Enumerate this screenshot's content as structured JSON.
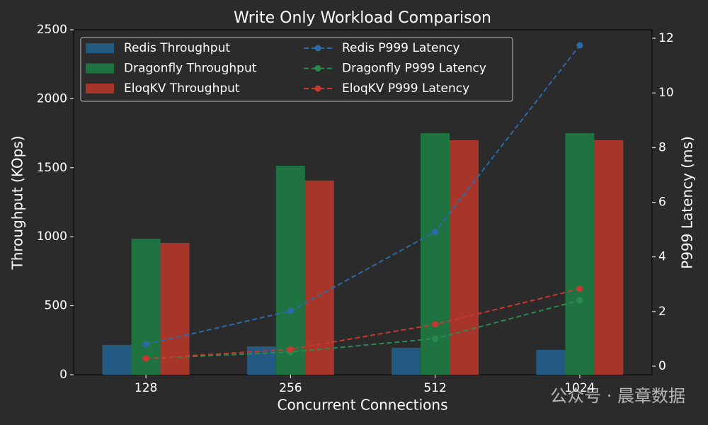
{
  "chart_data": {
    "type": "bar",
    "title": "Write Only Workload Comparison",
    "x_label": "Concurrent Connections",
    "y_label": "Throughput (KOps)",
    "y2_label": "P999 Latency (ms)",
    "categories": [
      "128",
      "256",
      "512",
      "1024"
    ],
    "ylim": [
      0,
      2500
    ],
    "yticks": [
      0,
      500,
      1000,
      1500,
      2000,
      2500
    ],
    "y2lim": [
      -0.31,
      12.31
    ],
    "y2ticks": [
      0,
      2,
      4,
      6,
      8,
      10,
      12
    ],
    "series": [
      {
        "name": "Redis Throughput",
        "type": "bar",
        "color": "#235a82",
        "values": [
          216,
          205,
          195,
          180
        ]
      },
      {
        "name": "Dragonfly Throughput",
        "type": "bar",
        "color": "#1e7340",
        "values": [
          986,
          1514,
          1750,
          1750
        ]
      },
      {
        "name": "EloqKV Throughput",
        "type": "bar",
        "color": "#a8352a",
        "values": [
          955,
          1407,
          1699,
          1699
        ]
      },
      {
        "name": "Redis P999 Latency",
        "type": "line",
        "axis": "y2",
        "color": "#2a6aa8",
        "values": [
          0.8,
          2.02,
          4.92,
          11.74
        ]
      },
      {
        "name": "Dragonfly P999 Latency",
        "type": "line",
        "axis": "y2",
        "color": "#2a8a4e",
        "values": [
          0.28,
          0.52,
          1.01,
          2.41
        ]
      },
      {
        "name": "EloqKV P999 Latency",
        "type": "line",
        "axis": "y2",
        "color": "#c8382e",
        "values": [
          0.28,
          0.62,
          1.53,
          2.83
        ]
      }
    ],
    "watermark": "公众号 · 晨章数据"
  }
}
